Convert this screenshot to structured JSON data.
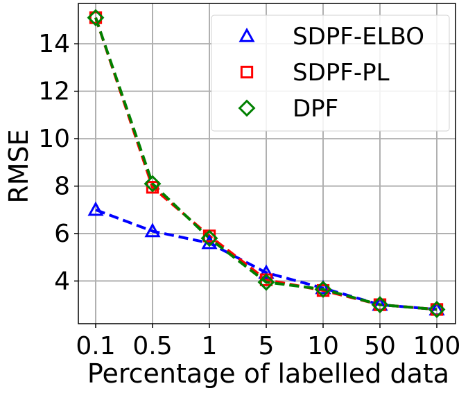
{
  "chart_data": {
    "type": "line",
    "categories": [
      "0.1",
      "0.5",
      "1",
      "5",
      "10",
      "50",
      "100"
    ],
    "xlabel": "Percentage of labelled data",
    "ylabel": "RMSE",
    "ylim": [
      2.2,
      15.7
    ],
    "yticks": [
      4,
      6,
      8,
      10,
      12,
      14
    ],
    "grid": true,
    "legend_position": "top-right",
    "series": [
      {
        "name": "SDPF-ELBO",
        "marker": "triangle",
        "color": "#0000ff",
        "values": [
          7.0,
          6.1,
          5.6,
          4.35,
          3.7,
          3.0,
          2.8
        ]
      },
      {
        "name": "SDPF-PL",
        "marker": "square",
        "color": "#ff0000",
        "values": [
          15.1,
          7.95,
          5.9,
          4.05,
          3.6,
          3.0,
          2.8
        ]
      },
      {
        "name": "DPF",
        "marker": "diamond",
        "color": "#008000",
        "values": [
          15.1,
          8.1,
          5.8,
          3.95,
          3.65,
          3.0,
          2.8
        ]
      }
    ]
  }
}
